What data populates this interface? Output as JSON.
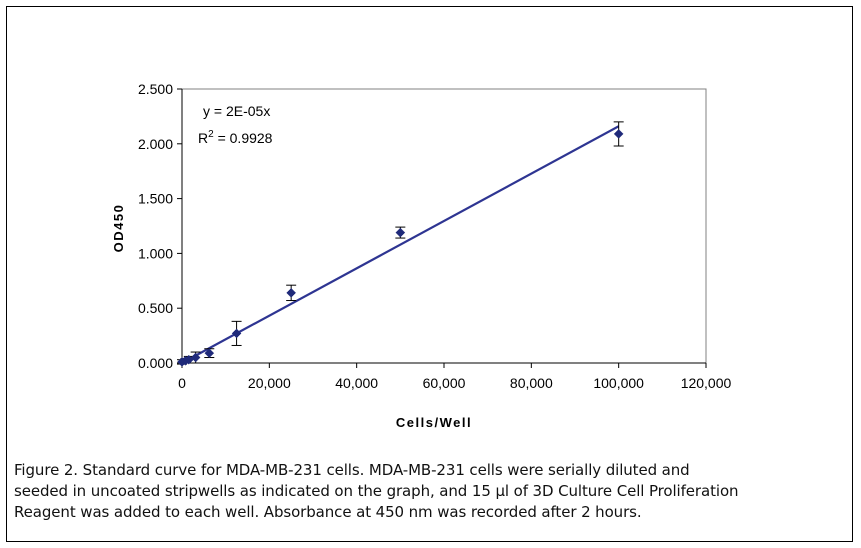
{
  "chart_data": {
    "type": "scatter",
    "title": "",
    "xlabel": "Cells/Well",
    "ylabel": "OD450",
    "xlim": [
      0,
      120000
    ],
    "ylim": [
      0,
      2.5
    ],
    "x_ticks": [
      "0",
      "20,000",
      "40,000",
      "60,000",
      "80,000",
      "100,000",
      "120,000"
    ],
    "y_ticks": [
      "0.000",
      "0.500",
      "1.000",
      "1.500",
      "2.000",
      "2.500"
    ],
    "series": [
      {
        "x": [
          0,
          781,
          1563,
          3125,
          6250,
          12500,
          25000,
          50000,
          100000
        ],
        "y": [
          0.01,
          0.02,
          0.03,
          0.05,
          0.09,
          0.27,
          0.64,
          1.19,
          2.09
        ],
        "error": [
          0.02,
          0.02,
          0.03,
          0.05,
          0.04,
          0.11,
          0.07,
          0.05,
          0.11
        ],
        "color": "#1f2a7a"
      }
    ],
    "trendline": {
      "type": "linear",
      "slope": 2.16e-05,
      "intercept": 0,
      "color": "#2e3592"
    },
    "annotations": {
      "equation": "y = 2E-05x",
      "r2_prefix": "R",
      "r2_sup": "2",
      "r2_value": " = 0.9928"
    },
    "grid": false,
    "legend": "none"
  },
  "caption": {
    "line1": "Figure 2.  Standard curve for MDA-MB-231 cells.  MDA-MB-231 cells were serially diluted and",
    "line2": "seeded in uncoated stripwells as indicated on the graph, and 15 µl of 3D Culture Cell Proliferation",
    "line3": "Reagent was added to each well.  Absorbance at 450 nm was recorded after 2 hours."
  }
}
